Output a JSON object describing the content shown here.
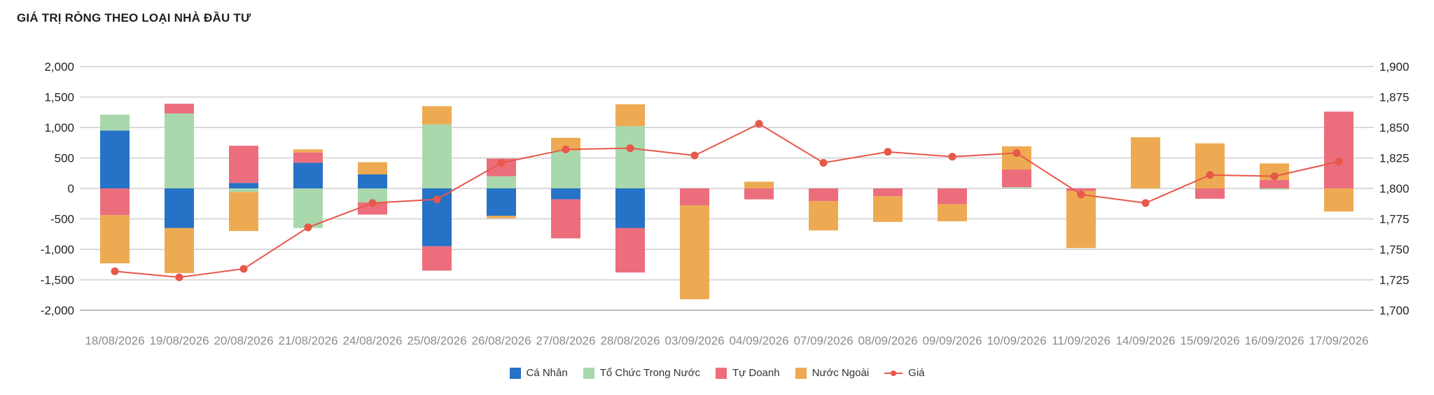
{
  "title": "GIÁ TRỊ RÒNG THEO LOẠI NHÀ ĐẦU TƯ",
  "colors": {
    "ca_nhan": "#2672c6",
    "to_chuc": "#a8d8ac",
    "tu_doanh": "#ec6e7d",
    "nuoc_ngoai": "#eeaa52",
    "gia": "#e8574a",
    "grid": "#d9d9d9",
    "axis_text": "#222222",
    "date_text": "#8c8c8c"
  },
  "legend": [
    {
      "key": "ca_nhan",
      "label": "Cá Nhân",
      "kind": "bar"
    },
    {
      "key": "to_chuc",
      "label": "Tổ Chức Trong Nước",
      "kind": "bar"
    },
    {
      "key": "tu_doanh",
      "label": "Tự Doanh",
      "kind": "bar"
    },
    {
      "key": "nuoc_ngoai",
      "label": "Nước Ngoài",
      "kind": "bar"
    },
    {
      "key": "gia",
      "label": "Giá",
      "kind": "line"
    }
  ],
  "chart_data": {
    "type": "bar",
    "stacked": true,
    "categories": [
      "18/08/2026",
      "19/08/2026",
      "20/08/2026",
      "21/08/2026",
      "24/08/2026",
      "25/08/2026",
      "26/08/2026",
      "27/08/2026",
      "28/08/2026",
      "03/09/2026",
      "04/09/2026",
      "07/09/2026",
      "08/09/2026",
      "09/09/2026",
      "10/09/2026",
      "11/09/2026",
      "14/09/2026",
      "15/09/2026",
      "16/09/2026",
      "17/09/2026"
    ],
    "series": [
      {
        "key": "ca_nhan",
        "name": "Cá Nhân",
        "values": [
          950,
          -650,
          90,
          420,
          230,
          -950,
          -450,
          -180,
          -650,
          0,
          0,
          0,
          0,
          0,
          0,
          0,
          0,
          0,
          0,
          0
        ]
      },
      {
        "key": "to_chuc",
        "name": "Tổ Chức Trong Nước",
        "values": [
          260,
          1230,
          -60,
          -650,
          -230,
          1050,
          200,
          620,
          1020,
          0,
          0,
          0,
          0,
          0,
          20,
          0,
          0,
          0,
          -20,
          0
        ]
      },
      {
        "key": "tu_doanh",
        "name": "Tự Doanh",
        "values": [
          -440,
          160,
          610,
          170,
          -200,
          -400,
          290,
          -640,
          -730,
          -280,
          -180,
          -210,
          -130,
          -260,
          290,
          -40,
          0,
          -170,
          140,
          1260
        ]
      },
      {
        "key": "nuoc_ngoai",
        "name": "Nước Ngoài",
        "values": [
          -790,
          -740,
          -640,
          50,
          200,
          300,
          -40,
          210,
          360,
          -1540,
          110,
          -480,
          -420,
          -280,
          380,
          -940,
          840,
          740,
          270,
          -380
        ]
      }
    ],
    "line": {
      "key": "gia",
      "name": "Giá",
      "values": [
        1732,
        1727,
        1734,
        1768,
        1788,
        1791,
        1821,
        1832,
        1833,
        1827,
        1853,
        1821,
        1830,
        1826,
        1829,
        1795,
        1788,
        1811,
        1810,
        1822
      ]
    },
    "y_left": {
      "min": -2000,
      "max": 2000,
      "ticks": [
        "2,000",
        "1,500",
        "1,000",
        "500",
        "0",
        "-500",
        "-1,000",
        "-1,500",
        "-2,000"
      ]
    },
    "y_right": {
      "min": 1700,
      "max": 1900,
      "ticks": [
        "1,900",
        "1,875",
        "1,850",
        "1,825",
        "1,800",
        "1,775",
        "1,750",
        "1,725",
        "1,700"
      ]
    },
    "grid": true,
    "legend_position": "bottom"
  }
}
